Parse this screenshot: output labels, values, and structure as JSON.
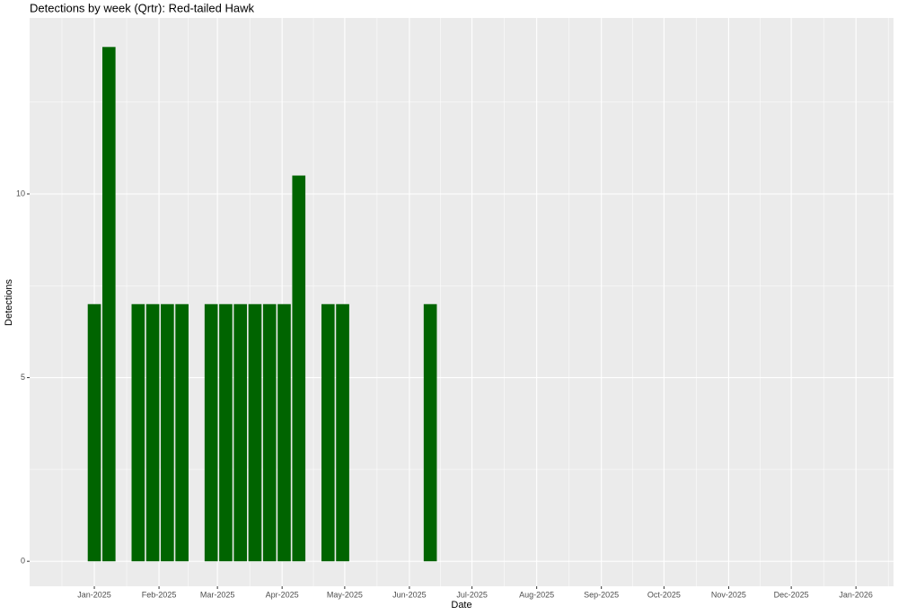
{
  "chart_data": {
    "type": "bar",
    "title": "Detections by week (Qrtr): Red-tailed Hawk",
    "x_label": "Date",
    "y_label": "Detections",
    "x": [
      "2025-01-01",
      "2025-01-08",
      "2025-01-22",
      "2025-01-29",
      "2025-02-05",
      "2025-02-12",
      "2025-02-26",
      "2025-03-05",
      "2025-03-12",
      "2025-03-19",
      "2025-03-26",
      "2025-04-02",
      "2025-04-09",
      "2025-04-23",
      "2025-04-30",
      "2025-06-11"
    ],
    "values": [
      7,
      14,
      7,
      7,
      7,
      7,
      7,
      7,
      7,
      7,
      7,
      7,
      10.5,
      7,
      7,
      7
    ],
    "color": "#006400",
    "xlim": [
      "2024-12-01",
      "2026-01-19"
    ],
    "xticks": [
      {
        "value": "2025-01-01",
        "label": "Jan-2025"
      },
      {
        "value": "2025-02-01",
        "label": "Feb-2025"
      },
      {
        "value": "2025-03-01",
        "label": "Mar-2025"
      },
      {
        "value": "2025-04-01",
        "label": "Apr-2025"
      },
      {
        "value": "2025-05-01",
        "label": "May-2025"
      },
      {
        "value": "2025-06-01",
        "label": "Jun-2025"
      },
      {
        "value": "2025-07-01",
        "label": "Jul-2025"
      },
      {
        "value": "2025-08-01",
        "label": "Aug-2025"
      },
      {
        "value": "2025-09-01",
        "label": "Sep-2025"
      },
      {
        "value": "2025-10-01",
        "label": "Oct-2025"
      },
      {
        "value": "2025-11-01",
        "label": "Nov-2025"
      },
      {
        "value": "2025-12-01",
        "label": "Dec-2025"
      },
      {
        "value": "2026-01-01",
        "label": "Jan-2026"
      }
    ],
    "ylim": [
      -0.68,
      14.79
    ],
    "yticks": [
      0,
      5,
      10
    ],
    "grid": true,
    "minor_grid": true,
    "panel_color": "#ebebeb"
  }
}
